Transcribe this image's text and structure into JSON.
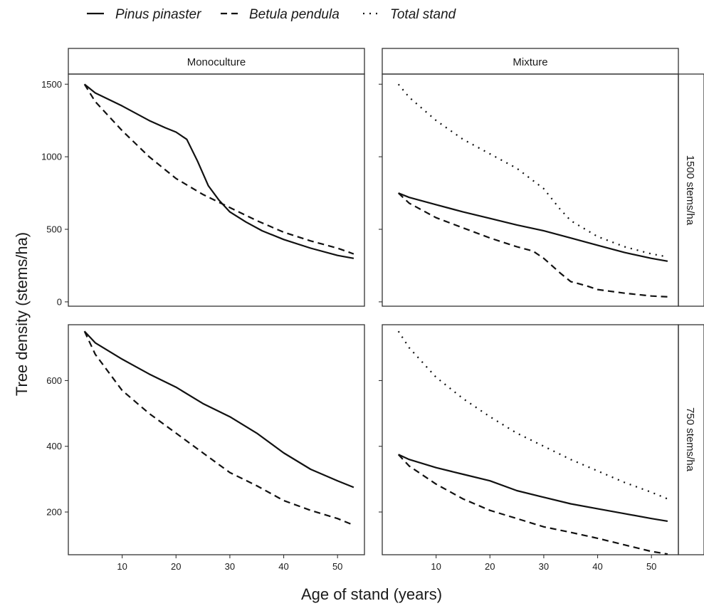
{
  "legend": [
    {
      "name": "Pinus pinaster",
      "linestyle": "solid"
    },
    {
      "name": "Betula pendula",
      "linestyle": "dashed"
    },
    {
      "name": "Total stand",
      "linestyle": "dotted"
    }
  ],
  "xlabel": "Age of stand (years)",
  "ylabel": "Tree density (stems/ha)",
  "col_strips": [
    "Monoculture",
    "Mixture"
  ],
  "row_strips": [
    "1500 stems/ha",
    "750 stems/ha"
  ],
  "colors": {
    "line": "#111111",
    "frame": "#333333",
    "background": "#ffffff"
  },
  "chart_data": [
    {
      "type": "line",
      "panel": "Monoculture / 1500 stems/ha",
      "xlim": [
        0,
        55
      ],
      "ylim": [
        -30,
        1570
      ],
      "x_ticks": [
        10,
        20,
        30,
        40,
        50
      ],
      "y_ticks": [
        0,
        500,
        1000,
        1500
      ],
      "series": [
        {
          "name": "Pinus pinaster",
          "linestyle": "solid",
          "x": [
            3,
            5,
            10,
            15,
            18,
            20,
            22,
            24,
            26,
            28,
            30,
            33,
            36,
            40,
            45,
            50,
            53
          ],
          "y": [
            1500,
            1440,
            1350,
            1250,
            1200,
            1170,
            1120,
            970,
            800,
            700,
            620,
            550,
            490,
            430,
            370,
            320,
            300
          ]
        },
        {
          "name": "Betula pendula",
          "linestyle": "dashed",
          "x": [
            3,
            5,
            10,
            15,
            20,
            25,
            30,
            35,
            40,
            45,
            50,
            53
          ],
          "y": [
            1500,
            1380,
            1180,
            1000,
            850,
            740,
            650,
            560,
            480,
            420,
            370,
            330
          ]
        }
      ]
    },
    {
      "type": "line",
      "panel": "Mixture / 1500 stems/ha",
      "xlim": [
        0,
        55
      ],
      "ylim": [
        -30,
        1570
      ],
      "x_ticks": [
        10,
        20,
        30,
        40,
        50
      ],
      "y_ticks": [
        0,
        500,
        1000,
        1500
      ],
      "series": [
        {
          "name": "Pinus pinaster",
          "linestyle": "solid",
          "x": [
            3,
            5,
            10,
            15,
            20,
            25,
            30,
            35,
            40,
            45,
            50,
            53
          ],
          "y": [
            750,
            720,
            670,
            620,
            575,
            530,
            490,
            440,
            390,
            340,
            300,
            280
          ]
        },
        {
          "name": "Betula pendula",
          "linestyle": "dashed",
          "x": [
            3,
            5,
            10,
            15,
            20,
            25,
            28,
            30,
            33,
            35,
            38,
            40,
            45,
            50,
            53
          ],
          "y": [
            750,
            680,
            580,
            510,
            440,
            380,
            350,
            300,
            200,
            140,
            110,
            85,
            60,
            40,
            35
          ]
        },
        {
          "name": "Total stand",
          "linestyle": "dotted",
          "x": [
            3,
            5,
            10,
            15,
            20,
            25,
            30,
            33,
            35,
            40,
            45,
            50,
            53
          ],
          "y": [
            1500,
            1410,
            1250,
            1120,
            1020,
            920,
            780,
            640,
            560,
            450,
            380,
            330,
            310
          ]
        }
      ]
    },
    {
      "type": "line",
      "panel": "Monoculture / 750 stems/ha",
      "xlim": [
        0,
        55
      ],
      "ylim": [
        70,
        770
      ],
      "x_ticks": [
        10,
        20,
        30,
        40,
        50
      ],
      "y_ticks": [
        200,
        400,
        600
      ],
      "series": [
        {
          "name": "Pinus pinaster",
          "linestyle": "solid",
          "x": [
            3,
            5,
            10,
            15,
            20,
            25,
            30,
            35,
            40,
            45,
            50,
            53
          ],
          "y": [
            750,
            715,
            665,
            620,
            580,
            530,
            490,
            440,
            380,
            330,
            295,
            275
          ]
        },
        {
          "name": "Betula pendula",
          "linestyle": "dashed",
          "x": [
            3,
            5,
            10,
            15,
            20,
            25,
            30,
            35,
            40,
            45,
            50,
            53
          ],
          "y": [
            750,
            680,
            570,
            500,
            440,
            380,
            320,
            280,
            235,
            205,
            180,
            160
          ]
        }
      ]
    },
    {
      "type": "line",
      "panel": "Mixture / 750 stems/ha",
      "xlim": [
        0,
        55
      ],
      "ylim": [
        70,
        770
      ],
      "x_ticks": [
        10,
        20,
        30,
        40,
        50
      ],
      "y_ticks": [
        200,
        400,
        600
      ],
      "series": [
        {
          "name": "Pinus pinaster",
          "linestyle": "solid",
          "x": [
            3,
            5,
            10,
            15,
            20,
            25,
            30,
            35,
            40,
            45,
            50,
            53
          ],
          "y": [
            375,
            360,
            335,
            315,
            295,
            265,
            245,
            225,
            210,
            195,
            180,
            172
          ]
        },
        {
          "name": "Betula pendula",
          "linestyle": "dashed",
          "x": [
            3,
            5,
            10,
            15,
            20,
            25,
            30,
            35,
            40,
            45,
            50,
            53
          ],
          "y": [
            375,
            340,
            285,
            240,
            205,
            180,
            155,
            138,
            120,
            100,
            80,
            72
          ]
        },
        {
          "name": "Total stand",
          "linestyle": "dotted",
          "x": [
            3,
            5,
            10,
            15,
            20,
            25,
            30,
            35,
            40,
            45,
            50,
            53
          ],
          "y": [
            750,
            700,
            610,
            545,
            490,
            440,
            400,
            360,
            325,
            290,
            260,
            240
          ]
        }
      ]
    }
  ]
}
